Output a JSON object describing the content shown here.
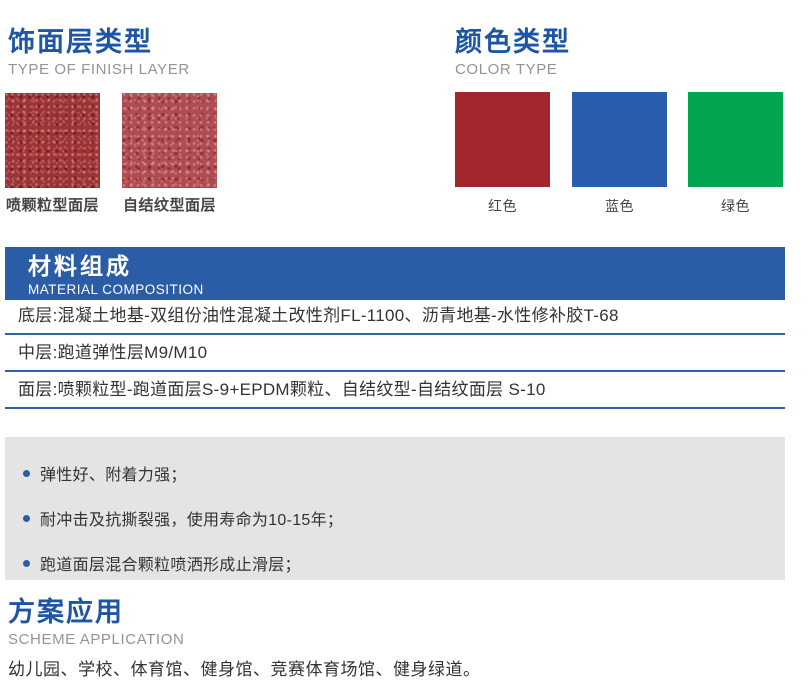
{
  "colors": {
    "accent_blue": "#1c56a5",
    "banner_blue": "#2b5ca6",
    "divider_blue": "#2f62a8",
    "panel_gray": "#e4e4e4",
    "subtitle_gray": "#949494",
    "body_text": "#333333"
  },
  "finish_section": {
    "title": "饰面层类型",
    "subtitle": "TYPE OF FINISH LAYER",
    "swatches": [
      {
        "label": "喷颗粒型面层",
        "texture": "spray-granule-red",
        "base_color": "#9e3336"
      },
      {
        "label": "自结纹型面层",
        "texture": "self-textured-red",
        "base_color": "#b04c51"
      }
    ]
  },
  "color_section": {
    "title": "颜色类型",
    "subtitle": "COLOR TYPE",
    "swatches": [
      {
        "label": "红色",
        "color": "#a3262d"
      },
      {
        "label": "蓝色",
        "color": "#2b5dae"
      },
      {
        "label": "绿色",
        "color": "#04a551"
      }
    ]
  },
  "composition": {
    "title": "材料组成",
    "subtitle": "MATERIAL COMPOSITION",
    "rows": [
      "底层:混凝土地基-双组份油性混凝土改性剂FL-1100、沥青地基-水性修补胶T-68",
      "中层:跑道弹性层M9/M10",
      "面层:喷颗粒型-跑道面层S-9+EPDM颗粒、自结纹型-自结纹面层 S-10"
    ],
    "features": [
      "弹性好、附着力强；",
      "耐冲击及抗撕裂强，使用寿命为10-15年；",
      "跑道面层混合颗粒喷洒形成止滑层；"
    ]
  },
  "application": {
    "title": "方案应用",
    "subtitle": "SCHEME APPLICATION",
    "text": "幼儿园、学校、体育馆、健身馆、竞赛体育场馆、健身绿道。"
  }
}
